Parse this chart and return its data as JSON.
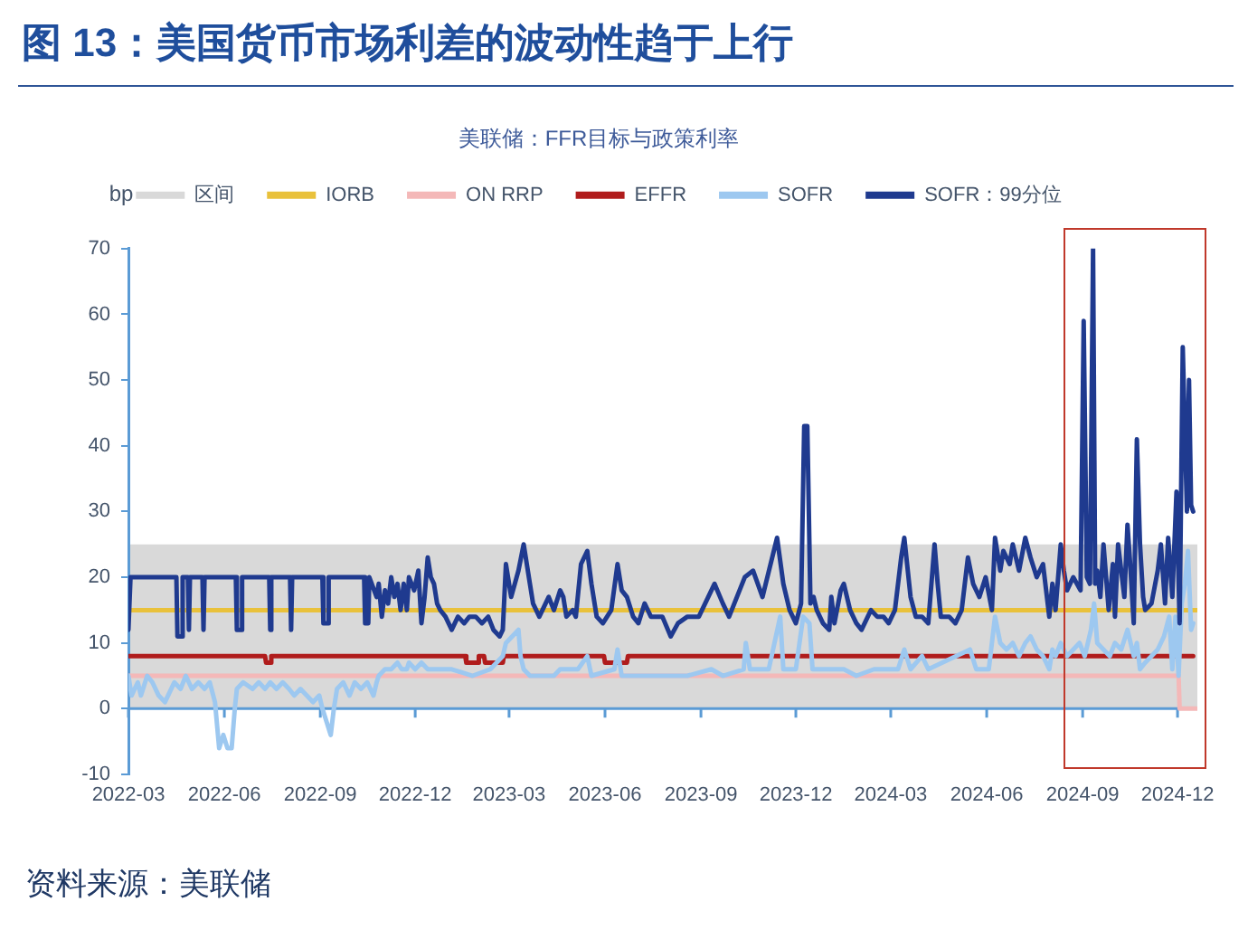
{
  "chart_data": {
    "type": "line",
    "title": "图 13：美国货币市场利差的波动性趋于上行",
    "subtitle": "美联储：FFR目标与政策利率",
    "ylabel": "bp",
    "annotations": [
      "资料来源：美联储"
    ],
    "legend": "top",
    "xlim": [
      "2022-03-01",
      "2024-12-20"
    ],
    "xticks": [
      "2022-03",
      "2022-06",
      "2022-09",
      "2022-12",
      "2023-03",
      "2023-06",
      "2023-09",
      "2023-12",
      "2024-03",
      "2024-06",
      "2024-09",
      "2024-12"
    ],
    "ylim": [
      -10,
      70
    ],
    "yticks": [
      -10,
      0,
      10,
      20,
      30,
      40,
      50,
      60,
      70
    ],
    "bands": [
      {
        "axis": "y",
        "from": 0,
        "to": 25,
        "label": "区间",
        "color": "#d9d9d9"
      }
    ],
    "ref_lines": [
      {
        "axis": "y",
        "value": 0,
        "color": "#5b9bd5"
      }
    ],
    "series": [
      {
        "name": "IORB",
        "color": "#e9c13b",
        "x": [
          "2022-03-01",
          "2024-12-19"
        ],
        "values": [
          15,
          15
        ]
      },
      {
        "name": "ON RRP",
        "color": "#f4b8b8",
        "x": [
          "2022-03-01",
          "2024-12-02",
          "2024-12-03",
          "2024-12-19"
        ],
        "values": [
          5,
          5,
          0,
          0
        ]
      },
      {
        "name": "EFFR",
        "color": "#b01c1c",
        "x": [
          "2022-03-01",
          "2022-07-10",
          "2022-07-11",
          "2022-07-15",
          "2022-07-16",
          "2023-01-18",
          "2023-01-19",
          "2023-01-30",
          "2023-01-31",
          "2023-02-05",
          "2023-02-06",
          "2023-02-23",
          "2023-02-24",
          "2023-05-31",
          "2023-06-01",
          "2023-06-22",
          "2023-06-23",
          "2024-12-16"
        ],
        "values": [
          8,
          8,
          7,
          7,
          8,
          8,
          7,
          7,
          8,
          8,
          7,
          7,
          8,
          8,
          7,
          7,
          8,
          8
        ]
      },
      {
        "name": "SOFR",
        "color": "#9dc8f0",
        "x": [
          "2022-03-01",
          "2022-03-04",
          "2022-03-10",
          "2022-03-13",
          "2022-03-19",
          "2022-03-24",
          "2022-03-30",
          "2022-04-05",
          "2022-04-11",
          "2022-04-14",
          "2022-04-20",
          "2022-04-25",
          "2022-05-01",
          "2022-05-07",
          "2022-05-13",
          "2022-05-18",
          "2022-05-23",
          "2022-05-27",
          "2022-05-31",
          "2022-06-04",
          "2022-06-08",
          "2022-06-11",
          "2022-06-13",
          "2022-06-19",
          "2022-06-28",
          "2022-07-04",
          "2022-07-10",
          "2022-07-15",
          "2022-07-21",
          "2022-07-27",
          "2022-08-02",
          "2022-08-07",
          "2022-08-13",
          "2022-08-19",
          "2022-08-25",
          "2022-08-31",
          "2022-09-03",
          "2022-09-05",
          "2022-09-11",
          "2022-09-14",
          "2022-09-17",
          "2022-09-23",
          "2022-09-29",
          "2022-10-04",
          "2022-10-10",
          "2022-10-16",
          "2022-10-22",
          "2022-10-25",
          "2022-10-27",
          "2022-11-02",
          "2022-11-08",
          "2022-11-14",
          "2022-11-18",
          "2022-11-23",
          "2022-11-25",
          "2022-12-01",
          "2022-12-07",
          "2022-12-13",
          "2022-12-19",
          "2022-12-30",
          "2023-01-05",
          "2023-01-25",
          "2023-02-11",
          "2023-02-23",
          "2023-02-26",
          "2023-03-10",
          "2023-03-12",
          "2023-03-15",
          "2023-03-21",
          "2023-04-13",
          "2023-04-19",
          "2023-04-28",
          "2023-05-06",
          "2023-05-15",
          "2023-05-19",
          "2023-06-10",
          "2023-06-13",
          "2023-06-17",
          "2023-07-15",
          "2023-08-19",
          "2023-09-11",
          "2023-09-22",
          "2023-10-12",
          "2023-10-14",
          "2023-10-18",
          "2023-11-05",
          "2023-11-16",
          "2023-11-19",
          "2023-12-01",
          "2023-12-08",
          "2023-12-14",
          "2023-12-17",
          "2024-01-05",
          "2024-01-16",
          "2024-01-28",
          "2024-02-14",
          "2024-03-08",
          "2024-03-14",
          "2024-03-20",
          "2024-03-31",
          "2024-04-06",
          "2024-05-16",
          "2024-05-22",
          "2024-06-03",
          "2024-06-09",
          "2024-06-14",
          "2024-06-20",
          "2024-06-26",
          "2024-07-02",
          "2024-07-08",
          "2024-07-13",
          "2024-07-19",
          "2024-07-25",
          "2024-07-31",
          "2024-08-03",
          "2024-08-06",
          "2024-08-11",
          "2024-08-17",
          "2024-08-23",
          "2024-08-29",
          "2024-09-03",
          "2024-09-09",
          "2024-09-12",
          "2024-09-15",
          "2024-09-21",
          "2024-09-27",
          "2024-10-02",
          "2024-10-08",
          "2024-10-14",
          "2024-10-20",
          "2024-10-23",
          "2024-10-26",
          "2024-10-31",
          "2024-11-06",
          "2024-11-12",
          "2024-11-18",
          "2024-11-23",
          "2024-11-26",
          "2024-11-29",
          "2024-12-02",
          "2024-12-05",
          "2024-12-08",
          "2024-12-11",
          "2024-12-14",
          "2024-12-16"
        ],
        "values": [
          5,
          2,
          4,
          2,
          5,
          4,
          2,
          1,
          3,
          4,
          3,
          5,
          3,
          4,
          3,
          4,
          1,
          -6,
          -4,
          -6,
          -6,
          0,
          3,
          4,
          3,
          4,
          3,
          4,
          3,
          4,
          3,
          2,
          3,
          2,
          1,
          2,
          0,
          -1,
          -4,
          0,
          3,
          4,
          2,
          4,
          3,
          4,
          2,
          4,
          5,
          6,
          6,
          7,
          6,
          6,
          7,
          6,
          7,
          6,
          6,
          6,
          6,
          5,
          6,
          8,
          10,
          12,
          8,
          6,
          5,
          5,
          6,
          6,
          6,
          8,
          5,
          6,
          9,
          5,
          5,
          5,
          6,
          5,
          6,
          10,
          6,
          6,
          14,
          6,
          6,
          14,
          13,
          6,
          6,
          6,
          5,
          6,
          6,
          9,
          6,
          8,
          6,
          9,
          6,
          6,
          14,
          10,
          9,
          10,
          8,
          10,
          11,
          9,
          8,
          6,
          9,
          8,
          10,
          8,
          9,
          10,
          8,
          12,
          16,
          10,
          9,
          8,
          10,
          9,
          12,
          8,
          10,
          6,
          7,
          8,
          9,
          11,
          14,
          6,
          14,
          5,
          16,
          19,
          24,
          12,
          13
        ]
      },
      {
        "name": "SOFR：99分位",
        "color": "#1f3a8f",
        "x": [
          "2022-03-01",
          "2022-03-03",
          "2022-04-16",
          "2022-04-17",
          "2022-04-21",
          "2022-04-22",
          "2022-04-27",
          "2022-04-28",
          "2022-04-29",
          "2022-05-11",
          "2022-05-12",
          "2022-05-13",
          "2022-06-12",
          "2022-06-13",
          "2022-06-17",
          "2022-06-18",
          "2022-07-14",
          "2022-07-15",
          "2022-07-16",
          "2022-08-03",
          "2022-08-04",
          "2022-08-05",
          "2022-09-03",
          "2022-09-04",
          "2022-09-08",
          "2022-09-09",
          "2022-10-13",
          "2022-10-14",
          "2022-10-17",
          "2022-10-18",
          "2022-10-25",
          "2022-10-27",
          "2022-10-30",
          "2022-11-02",
          "2022-11-05",
          "2022-11-08",
          "2022-11-11",
          "2022-11-14",
          "2022-11-17",
          "2022-11-20",
          "2022-11-23",
          "2022-11-25",
          "2022-11-30",
          "2022-12-04",
          "2022-12-07",
          "2022-12-10",
          "2022-12-13",
          "2022-12-16",
          "2022-12-19",
          "2022-12-22",
          "2022-12-25",
          "2022-12-30",
          "2023-01-02",
          "2023-01-05",
          "2023-01-11",
          "2023-01-17",
          "2023-01-22",
          "2023-01-28",
          "2023-02-03",
          "2023-02-09",
          "2023-02-14",
          "2023-02-20",
          "2023-02-23",
          "2023-02-26",
          "2023-03-03",
          "2023-03-10",
          "2023-03-15",
          "2023-03-21",
          "2023-03-24",
          "2023-03-30",
          "2023-04-08",
          "2023-04-13",
          "2023-04-19",
          "2023-04-22",
          "2023-04-25",
          "2023-05-01",
          "2023-05-04",
          "2023-05-09",
          "2023-05-15",
          "2023-05-19",
          "2023-05-24",
          "2023-05-30",
          "2023-06-07",
          "2023-06-13",
          "2023-06-17",
          "2023-06-22",
          "2023-06-28",
          "2023-07-03",
          "2023-07-09",
          "2023-07-15",
          "2023-07-21",
          "2023-07-26",
          "2023-08-03",
          "2023-08-10",
          "2023-08-19",
          "2023-08-30",
          "2023-09-08",
          "2023-09-14",
          "2023-09-22",
          "2023-09-28",
          "2023-10-13",
          "2023-10-21",
          "2023-10-30",
          "2023-11-13",
          "2023-11-19",
          "2023-11-25",
          "2023-12-01",
          "2023-12-06",
          "2023-12-09",
          "2023-12-12",
          "2023-12-15",
          "2023-12-18",
          "2023-12-21",
          "2023-12-27",
          "2024-01-02",
          "2024-01-04",
          "2024-01-07",
          "2024-01-13",
          "2024-01-16",
          "2024-01-22",
          "2024-01-28",
          "2024-02-02",
          "2024-02-08",
          "2024-02-11",
          "2024-02-17",
          "2024-02-23",
          "2024-02-28",
          "2024-03-05",
          "2024-03-11",
          "2024-03-14",
          "2024-03-20",
          "2024-03-25",
          "2024-03-31",
          "2024-04-06",
          "2024-04-12",
          "2024-04-15",
          "2024-04-18",
          "2024-04-26",
          "2024-05-02",
          "2024-05-08",
          "2024-05-14",
          "2024-05-19",
          "2024-05-25",
          "2024-05-31",
          "2024-06-06",
          "2024-06-09",
          "2024-06-14",
          "2024-06-17",
          "2024-06-23",
          "2024-06-26",
          "2024-07-02",
          "2024-07-08",
          "2024-07-13",
          "2024-07-19",
          "2024-07-25",
          "2024-07-31",
          "2024-08-03",
          "2024-08-06",
          "2024-08-11",
          "2024-08-14",
          "2024-08-17",
          "2024-08-23",
          "2024-08-30",
          "2024-09-02",
          "2024-09-05",
          "2024-09-08",
          "2024-09-11",
          "2024-09-13",
          "2024-09-15",
          "2024-09-18",
          "2024-09-21",
          "2024-09-26",
          "2024-09-30",
          "2024-10-02",
          "2024-10-05",
          "2024-10-11",
          "2024-10-14",
          "2024-10-17",
          "2024-10-20",
          "2024-10-23",
          "2024-10-26",
          "2024-10-29",
          "2024-10-31",
          "2024-11-06",
          "2024-11-12",
          "2024-11-15",
          "2024-11-19",
          "2024-11-22",
          "2024-11-26",
          "2024-11-30",
          "2024-12-03",
          "2024-12-06",
          "2024-12-10",
          "2024-12-12",
          "2024-12-14",
          "2024-12-16"
        ],
        "values": [
          12,
          20,
          20,
          11,
          11,
          20,
          20,
          12,
          20,
          20,
          12,
          20,
          20,
          12,
          12,
          20,
          20,
          12,
          20,
          20,
          12,
          20,
          20,
          13,
          13,
          20,
          20,
          13,
          13,
          20,
          17,
          19,
          14,
          18,
          16,
          20,
          17,
          19,
          15,
          19,
          15,
          20,
          18,
          21,
          13,
          17,
          23,
          20,
          19,
          16,
          15,
          14,
          13,
          12,
          14,
          13,
          14,
          14,
          13,
          14,
          12,
          11,
          12,
          22,
          17,
          21,
          25,
          19,
          16,
          14,
          17,
          15,
          18,
          17,
          14,
          15,
          14,
          22,
          24,
          19,
          14,
          13,
          15,
          22,
          18,
          17,
          14,
          13,
          16,
          14,
          14,
          14,
          11,
          13,
          14,
          14,
          17,
          19,
          16,
          14,
          20,
          21,
          17,
          26,
          19,
          15,
          13,
          16,
          43,
          43,
          16,
          17,
          15,
          13,
          12,
          17,
          13,
          18,
          19,
          15,
          13,
          12,
          14,
          15,
          14,
          14,
          13,
          15,
          23,
          26,
          17,
          14,
          14,
          13,
          25,
          19,
          14,
          14,
          13,
          15,
          23,
          19,
          17,
          20,
          15,
          26,
          21,
          24,
          22,
          25,
          21,
          26,
          23,
          20,
          22,
          14,
          19,
          15,
          25,
          21,
          18,
          20,
          18,
          59,
          20,
          19,
          70,
          19,
          21,
          17,
          25,
          15,
          22,
          14,
          25,
          17,
          28,
          21,
          13,
          41,
          25,
          17,
          15,
          16,
          21,
          25,
          16,
          26,
          17,
          33,
          13,
          55,
          30,
          50,
          31,
          30
        ]
      }
    ]
  }
}
